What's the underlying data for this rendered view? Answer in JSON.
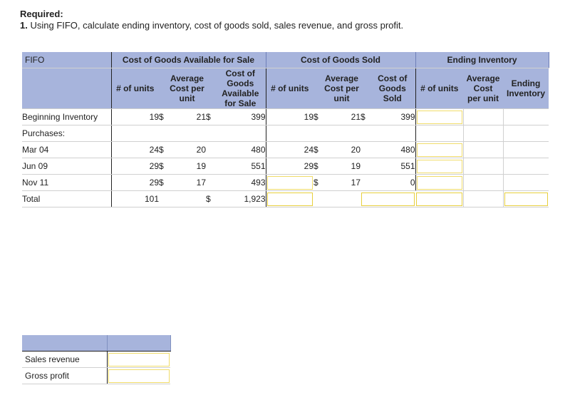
{
  "required": {
    "label": "Required:",
    "number": "1.",
    "text": "Using FIFO, calculate ending inventory, cost of goods sold, sales revenue, and gross profit."
  },
  "table": {
    "corner_label": "FIFO",
    "groups": [
      "Cost of Goods Available for Sale",
      "Cost of Goods Sold",
      "Ending Inventory"
    ],
    "subheaders": {
      "cgas": [
        "# of units",
        "Average Cost per unit",
        "Cost of Goods Available for Sale"
      ],
      "cogs": [
        "# of units",
        "Average Cost per unit",
        "Cost of Goods Sold"
      ],
      "ending": [
        "# of units",
        "Average Cost per unit",
        "Ending Inventory"
      ]
    },
    "rows": [
      {
        "label": "Beginning Inventory",
        "units": "19",
        "dollar": "$",
        "cost": "21",
        "dollar2": "$",
        "total": "399",
        "cogs_units": "19",
        "cogs_dollar": "$",
        "cogs_cost": "21",
        "cogs_dollar2": "$",
        "cogs_total": "399"
      },
      {
        "label": "Purchases:"
      },
      {
        "label": "Mar 04",
        "units": "24",
        "dollar": "$",
        "cost": "20",
        "total": "480",
        "cogs_units": "24",
        "cogs_dollar": "$",
        "cogs_cost": "20",
        "cogs_total": "480"
      },
      {
        "label": "Jun 09",
        "units": "29",
        "dollar": "$",
        "cost": "19",
        "total": "551",
        "cogs_units": "29",
        "cogs_dollar": "$",
        "cogs_cost": "19",
        "cogs_total": "551"
      },
      {
        "label": "Nov 11",
        "units": "29",
        "dollar": "$",
        "cost": "17",
        "total": "493",
        "cogs_units": "",
        "cogs_dollar": "$",
        "cogs_cost": "17",
        "cogs_total": "0"
      },
      {
        "label": "Total",
        "units": "101",
        "dollar2": "$",
        "total": "1,923"
      }
    ]
  },
  "summary": {
    "rows": [
      "Sales revenue",
      "Gross profit"
    ]
  }
}
